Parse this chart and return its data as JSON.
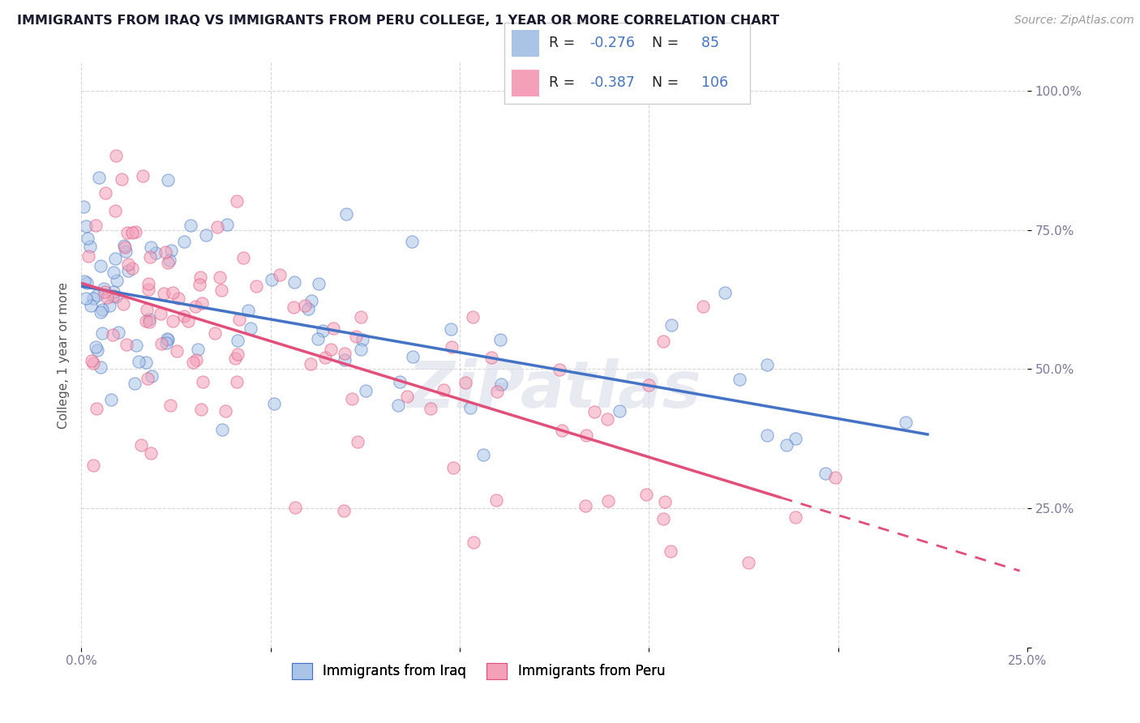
{
  "title": "IMMIGRANTS FROM IRAQ VS IMMIGRANTS FROM PERU COLLEGE, 1 YEAR OR MORE CORRELATION CHART",
  "source_text": "Source: ZipAtlas.com",
  "ylabel": "College, 1 year or more",
  "legend_iraq": "Immigrants from Iraq",
  "legend_peru": "Immigrants from Peru",
  "R_iraq": -0.276,
  "N_iraq": 85,
  "R_peru": -0.387,
  "N_peru": 106,
  "color_iraq": "#aac4e8",
  "color_peru": "#f4a0b8",
  "line_color_iraq": "#4472c4",
  "line_color_peru": "#e0507a",
  "xlim": [
    0.0,
    0.25
  ],
  "ylim": [
    0.0,
    1.05
  ],
  "xticks": [
    0.0,
    0.05,
    0.1,
    0.15,
    0.2,
    0.25
  ],
  "yticks": [
    0.0,
    0.25,
    0.5,
    0.75,
    1.0
  ],
  "grid_color": "#cccccc",
  "bg_color": "#ffffff",
  "watermark": "ZiPatlas",
  "title_fontsize": 11.5,
  "source_fontsize": 10,
  "tick_fontsize": 11,
  "ylabel_fontsize": 11
}
